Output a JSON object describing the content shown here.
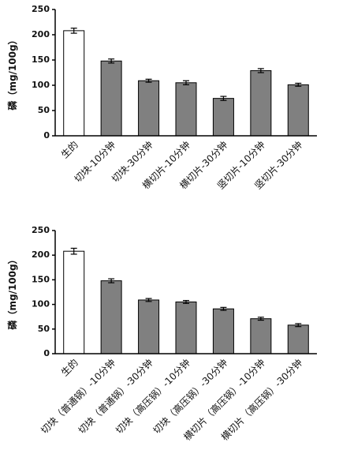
{
  "chart_data": [
    {
      "type": "bar",
      "y_label": "磷（mg/100g）",
      "categories": [
        "生的",
        "切块-10分钟",
        "切块-30分钟",
        "横切片-10分钟",
        "横切片-30分钟",
        "竖切片-10分钟",
        "竖切片-30分钟"
      ],
      "values": [
        208,
        148,
        109,
        105,
        74,
        129,
        101
      ],
      "errors": [
        5,
        4,
        3,
        4,
        4,
        4,
        3
      ],
      "colors": [
        "#ffffff",
        "#808080",
        "#808080",
        "#808080",
        "#808080",
        "#808080",
        "#808080"
      ],
      "ylim": [
        0,
        250
      ],
      "yticks": [
        0,
        50,
        100,
        150,
        200,
        250
      ]
    },
    {
      "type": "bar",
      "y_label": "磷（mg/100g）",
      "categories": [
        "生的",
        "切块（普通锅）-10分钟",
        "切块（普通锅）-30分钟",
        "切块（高压锅）-10分钟",
        "切块（高压锅）-30分钟",
        "横切片（高压锅）-10分钟",
        "横切片（高压锅）-30分钟"
      ],
      "values": [
        208,
        148,
        109,
        105,
        91,
        71,
        58
      ],
      "errors": [
        6,
        4,
        3,
        3,
        3,
        3,
        3
      ],
      "colors": [
        "#ffffff",
        "#808080",
        "#808080",
        "#808080",
        "#808080",
        "#808080",
        "#808080"
      ],
      "ylim": [
        0,
        250
      ],
      "yticks": [
        0,
        50,
        100,
        150,
        200,
        250
      ]
    }
  ]
}
